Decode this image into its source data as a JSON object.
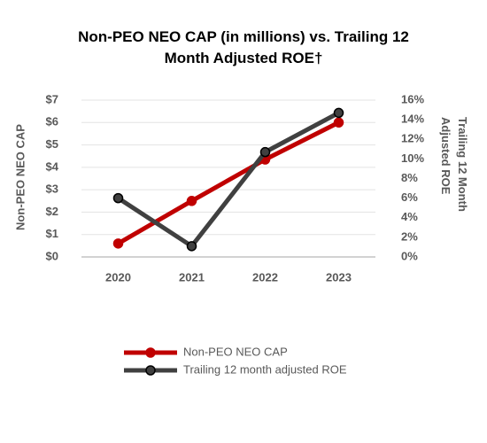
{
  "chart_data": {
    "type": "line",
    "title": "Non-PEO NEO CAP (in millions) vs. Trailing 12 Month Adjusted ROE†",
    "y_label": "Non-PEO NEO CAP",
    "y2_label": "Trailing 12 Month Adjusted ROE",
    "categories": [
      "2020",
      "2021",
      "2022",
      "2023"
    ],
    "series": [
      {
        "name": "Non-PEO NEO CAP",
        "color": "#c00000",
        "values": [
          0.6,
          2.5,
          4.35,
          6.0
        ]
      },
      {
        "name": "Trailing 12 month adjusted ROE",
        "color": "#404040",
        "axis": "y2",
        "values": [
          6.0,
          1.1,
          10.7,
          14.7
        ]
      }
    ],
    "ylim": [
      0,
      7
    ],
    "yticks": [
      {
        "value": 0,
        "label": "$0"
      },
      {
        "value": 1,
        "label": "$1"
      },
      {
        "value": 2,
        "label": "$2"
      },
      {
        "value": 3,
        "label": "$3"
      },
      {
        "value": 4,
        "label": "$4"
      },
      {
        "value": 5,
        "label": "$5"
      },
      {
        "value": 6,
        "label": "$6"
      },
      {
        "value": 7,
        "label": "$7"
      }
    ],
    "y2lim": [
      0,
      16
    ],
    "y2ticks": [
      {
        "value": 0,
        "label": "0%"
      },
      {
        "value": 2,
        "label": "2%"
      },
      {
        "value": 4,
        "label": "4%"
      },
      {
        "value": 6,
        "label": "6%"
      },
      {
        "value": 8,
        "label": "8%"
      },
      {
        "value": 10,
        "label": "10%"
      },
      {
        "value": 12,
        "label": "12%"
      },
      {
        "value": 14,
        "label": "14%"
      },
      {
        "value": 16,
        "label": "16%"
      }
    ],
    "grid": true,
    "legend": "bottom"
  }
}
